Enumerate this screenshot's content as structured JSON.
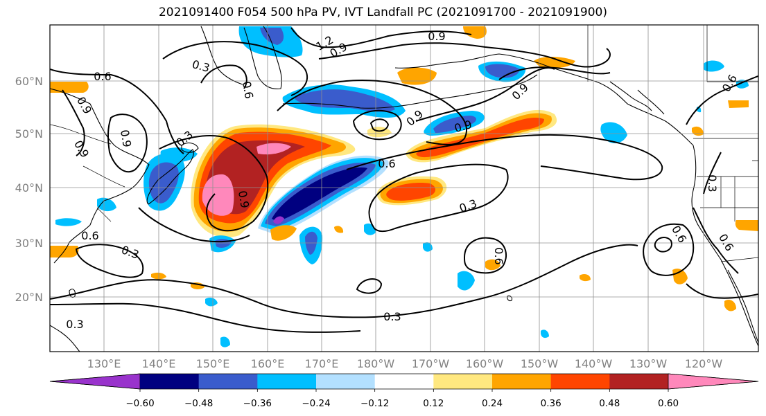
{
  "title": "2021091400 F054 500 hPa PV, IVT Landfall PC (2021091700 - 2021091900)",
  "map": {
    "lat_labels": [
      "60°N",
      "50°N",
      "40°N",
      "30°N",
      "20°N"
    ],
    "lon_labels": [
      "130°E",
      "140°E",
      "150°E",
      "160°E",
      "170°E",
      "180°W",
      "170°W",
      "160°W",
      "150°W",
      "140°W",
      "130°W",
      "120°W"
    ],
    "contour_labels": [
      "1.2",
      "0.9",
      "0.9",
      "0.3",
      "0.6",
      "0.9",
      "0.6",
      "0.9",
      "0.3",
      "0.9",
      "0.9",
      "0.9",
      "0.9",
      "0.6",
      "0.9",
      "0.6",
      "0.3",
      "0.6",
      "0.3",
      "0.6",
      "0.6",
      "0.3",
      "0.6",
      "0.3",
      "0.3"
    ]
  },
  "colorbar": {
    "tick_labels": [
      "−0.60",
      "−0.48",
      "−0.36",
      "−0.24",
      "−0.12",
      "0.12",
      "0.24",
      "0.36",
      "0.48",
      "0.60"
    ],
    "colors": [
      "#9933cc",
      "#000080",
      "#3a5ccc",
      "#00bfff",
      "#b3e0ff",
      "#ffffff",
      "#ffe880",
      "#ffa500",
      "#ff4500",
      "#b22222",
      "#ff88bb"
    ]
  },
  "palette": {
    "purple": "#9933cc",
    "navy": "#000080",
    "royal": "#3a5ccc",
    "sky": "#00bfff",
    "light_blue": "#b3e0ff",
    "pale_yellow": "#ffe880",
    "orange": "#ffa500",
    "red_orange": "#ff4500",
    "dark_red": "#b22222",
    "pink": "#ff88bb"
  }
}
